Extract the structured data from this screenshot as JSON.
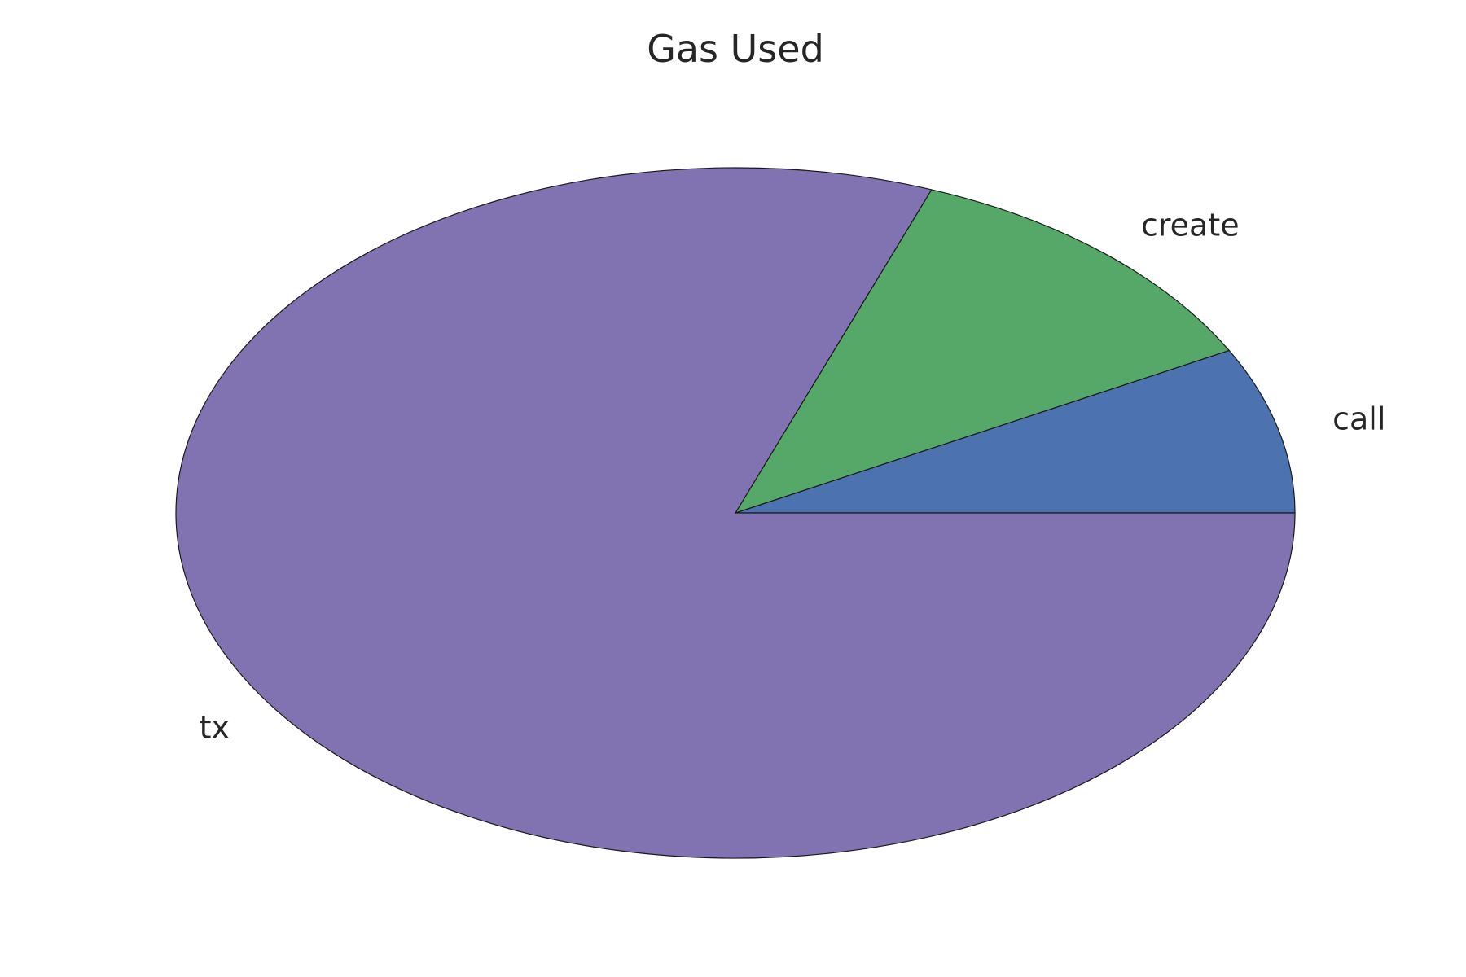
{
  "chart_data": {
    "type": "pie",
    "title": "Gas Used",
    "start_angle_deg": 0,
    "direction": "counterclockwise",
    "slices": [
      {
        "label": "call",
        "value": 7.8,
        "color": "#4c72b0"
      },
      {
        "label": "create",
        "value": 11.5,
        "color": "#55a868"
      },
      {
        "label": "tx",
        "value": 80.7,
        "color": "#8172b2"
      }
    ]
  }
}
